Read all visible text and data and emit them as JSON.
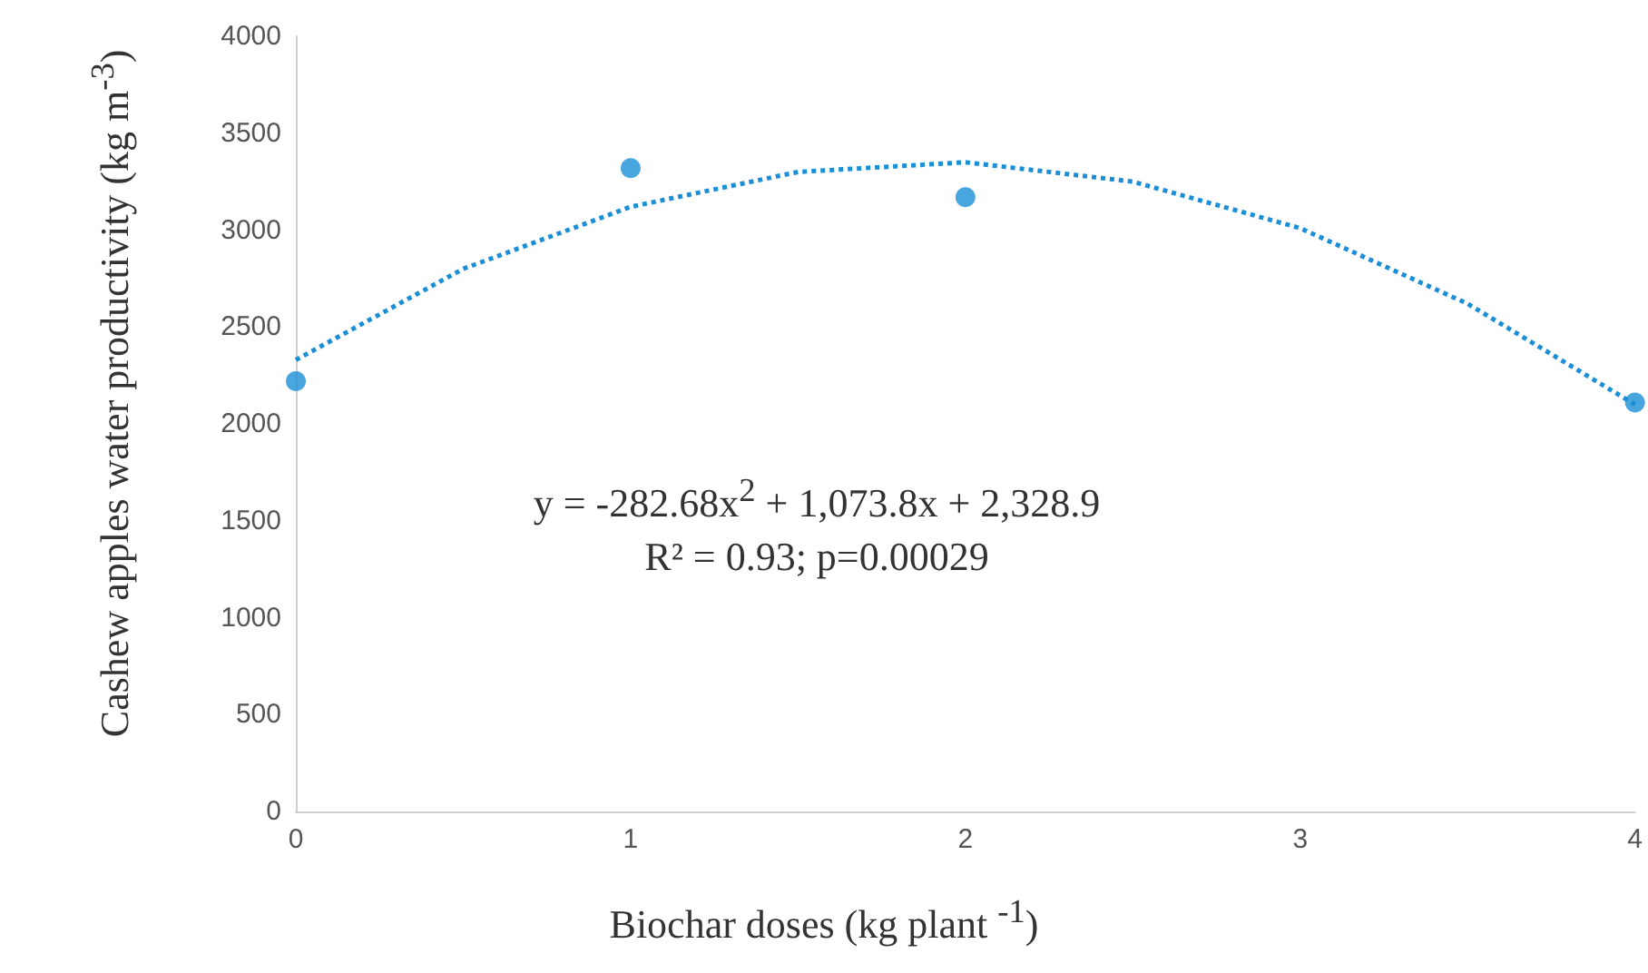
{
  "chart_data": {
    "type": "scatter",
    "xlabel": "Biochar doses (kg plant $^{-1}$)",
    "ylabel": "Cashew apples water productivity (kg m$^{-3}$)",
    "xlim": [
      0,
      4
    ],
    "xticks": [
      0,
      1,
      2,
      3,
      4
    ],
    "ylim": [
      0,
      4000
    ],
    "yticks": [
      0,
      500,
      1000,
      1500,
      2000,
      2500,
      3000,
      3500,
      4000
    ],
    "grid": false,
    "series": [
      {
        "color": "#1a8ed6",
        "marker": "circle",
        "x": [
          0,
          1,
          2,
          4
        ],
        "values": [
          2220,
          3320,
          3170,
          2110
        ]
      },
      {
        "type": "line",
        "color": "#1a8ed6",
        "marker": "none",
        "line_style": "dotted",
        "x": [
          0,
          0.5,
          1,
          1.5,
          2,
          2.5,
          3,
          3.5,
          4
        ],
        "values": [
          2330,
          2800,
          3120,
          3300,
          3350,
          3250,
          3010,
          2620,
          2100
        ]
      }
    ],
    "annotations": [
      "y = -282.68x$^{2}$ + 1,073.8x + 2,328.9",
      "R² = 0.93; p=0.00029"
    ]
  }
}
